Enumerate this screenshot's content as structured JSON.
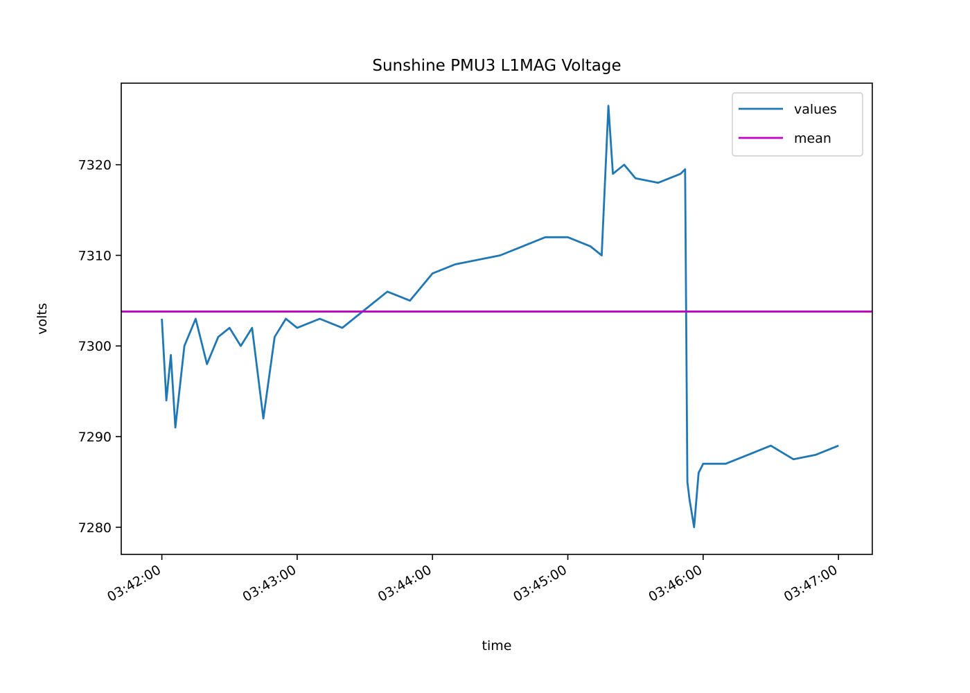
{
  "chart_data": {
    "type": "line",
    "title": "Sunshine PMU3 L1MAG Voltage",
    "xlabel": "time",
    "ylabel": "volts",
    "x_unit": "time of day (hh:mm:ss)",
    "xlim": [
      "03:41:42",
      "03:47:15"
    ],
    "ylim": [
      7277.0,
      7329.0
    ],
    "x_ticks": [
      "03:42:00",
      "03:43:00",
      "03:44:00",
      "03:45:00",
      "03:46:00",
      "03:47:00"
    ],
    "y_ticks": [
      7280,
      7290,
      7300,
      7310,
      7320
    ],
    "grid": false,
    "legend_position": "top-right",
    "series": [
      {
        "name": "values",
        "color": "#1f77b4",
        "x": [
          "03:42:00",
          "03:42:02",
          "03:42:04",
          "03:42:06",
          "03:42:10",
          "03:42:15",
          "03:42:20",
          "03:42:25",
          "03:42:30",
          "03:42:35",
          "03:42:40",
          "03:42:45",
          "03:42:50",
          "03:42:55",
          "03:43:00",
          "03:43:10",
          "03:43:20",
          "03:43:30",
          "03:43:40",
          "03:43:50",
          "03:44:00",
          "03:44:10",
          "03:44:20",
          "03:44:30",
          "03:44:40",
          "03:44:50",
          "03:45:00",
          "03:45:10",
          "03:45:15",
          "03:45:18",
          "03:45:20",
          "03:45:25",
          "03:45:30",
          "03:45:40",
          "03:45:50",
          "03:45:52",
          "03:45:53",
          "03:45:54",
          "03:45:56",
          "03:45:58",
          "03:46:00",
          "03:46:10",
          "03:46:20",
          "03:46:30",
          "03:46:40",
          "03:46:50",
          "03:47:00"
        ],
        "values": [
          7303.0,
          7294.0,
          7299.0,
          7291.0,
          7300.0,
          7303.0,
          7298.0,
          7301.0,
          7302.0,
          7300.0,
          7302.0,
          7292.0,
          7301.0,
          7303.0,
          7302.0,
          7303.0,
          7302.0,
          7304.0,
          7306.0,
          7305.0,
          7308.0,
          7309.0,
          7309.5,
          7310.0,
          7311.0,
          7312.0,
          7312.0,
          7311.0,
          7310.0,
          7326.5,
          7319.0,
          7320.0,
          7318.5,
          7318.0,
          7319.0,
          7319.5,
          7285.0,
          7283.0,
          7280.0,
          7286.0,
          7287.0,
          7287.0,
          7288.0,
          7289.0,
          7287.5,
          7288.0,
          7289.0
        ]
      },
      {
        "name": "mean",
        "color": "#bf00bf",
        "constant_value": 7303.8
      }
    ]
  }
}
